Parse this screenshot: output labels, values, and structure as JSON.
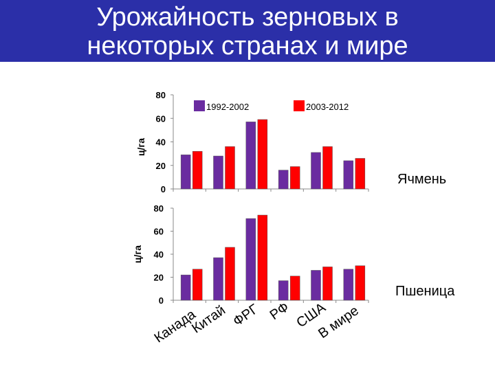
{
  "slide": {
    "title_line1": "Урожайность зерновых в",
    "title_line2": "некоторых странах и мире"
  },
  "colors": {
    "title_bg": "#2b2fa8",
    "title_text": "#ffffff",
    "series_1": "#6a2ca0",
    "series_2": "#ff0000"
  },
  "chart_data": [
    {
      "type": "bar",
      "crop": "Ячмень",
      "ylabel": "ц/га",
      "ylim": [
        0,
        80
      ],
      "yticks": [
        0,
        20,
        40,
        60,
        80
      ],
      "legend": "top",
      "categories": [
        "Канада",
        "Китай",
        "ФРГ",
        "РФ",
        "США",
        "В мире"
      ],
      "series": [
        {
          "name": "1992-2002",
          "values": [
            29,
            28,
            57,
            16,
            31,
            24
          ]
        },
        {
          "name": "2003-2012",
          "values": [
            32,
            36,
            59,
            19,
            36,
            26
          ]
        }
      ]
    },
    {
      "type": "bar",
      "crop": "Пшеница",
      "ylabel": "ц/га",
      "ylim": [
        0,
        80
      ],
      "yticks": [
        0,
        20,
        40,
        60,
        80
      ],
      "categories": [
        "Канада",
        "Китай",
        "ФРГ",
        "РФ",
        "США",
        "В мире"
      ],
      "series": [
        {
          "name": "1992-2002",
          "values": [
            22,
            37,
            71,
            17,
            26,
            27
          ]
        },
        {
          "name": "2003-2012",
          "values": [
            27,
            46,
            74,
            21,
            29,
            30
          ]
        }
      ]
    }
  ]
}
